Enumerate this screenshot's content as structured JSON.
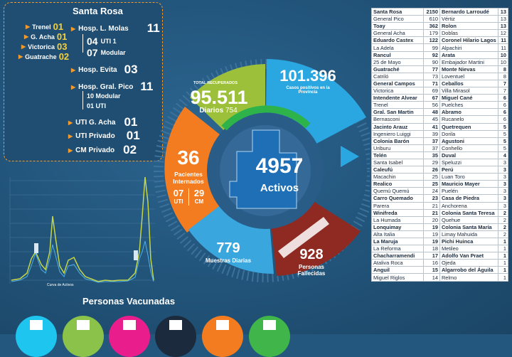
{
  "santa_rosa": {
    "title": "Santa Rosa",
    "locations": [
      {
        "name": "Trenel",
        "value": "01"
      },
      {
        "name": "G. Acha",
        "value": "01"
      },
      {
        "name": "Victorica",
        "value": "03"
      },
      {
        "name": "Guatrache",
        "value": "02"
      }
    ],
    "hosp_molas": {
      "label": "Hosp. L. Molas",
      "value": "11",
      "uti": "04",
      "uti_label": "UTI 1",
      "modular": "07",
      "modular_label": "Modular"
    },
    "hosp_evita": {
      "label": "Hosp. Evita",
      "value": "03"
    },
    "hosp_pico": {
      "label": "Hosp. Gral. Pico",
      "value": "11",
      "modular_line": "10 Modular",
      "uti_line": "01 UTI"
    },
    "uti_acha": {
      "label": "UTI G. Acha",
      "value": "01"
    },
    "uti_privado": {
      "label": "UTI Privado",
      "value": "01"
    },
    "cm_privado": {
      "label": "CM Privado",
      "value": "02"
    }
  },
  "chart": {
    "caption": "Curva de Activos"
  },
  "vaccinated": {
    "title": "Personas Vacunadas",
    "colors": [
      "#1ec5ee",
      "#8bc34a",
      "#e91e8c",
      "#1b2a3c",
      "#f47c20",
      "#3fb54a"
    ]
  },
  "summary": {
    "recuperados_title": "TOTAL RECUPERADOS",
    "recuperados": "95.511",
    "diarios_label": "Diarios",
    "diarios": "754",
    "casos": "101.396",
    "casos_label": "Casos positivos en la Provincia",
    "internados": "36",
    "internados_label": "Pacientes Internados",
    "uti": "07",
    "uti_label": "UTI",
    "cm": "29",
    "cm_label": "CM",
    "activos": "4957",
    "activos_label": "Activos",
    "muestras": "779",
    "muestras_label": "Muestras Diarias",
    "fallecidas": "928",
    "fallecidas_label": "Personas Fallecidas"
  },
  "colors": {
    "green": "#9dc03b",
    "blue": "#2aa6e0",
    "orange": "#f47c20",
    "dark_red": "#8e2a22",
    "light_blue": "#39a6dd",
    "navy": "#2f5c8a"
  },
  "table": [
    [
      "Santa Rosa",
      "2150",
      "Bernardo Larroudé",
      "13",
      1,
      1
    ],
    [
      "General Pico",
      "610",
      "Vértiz",
      "13",
      0,
      0
    ],
    [
      "Toay",
      "362",
      "Rolon",
      "13",
      1,
      1
    ],
    [
      "General Acha",
      "179",
      "Doblas",
      "12",
      0,
      0
    ],
    [
      "Eduardo Castex",
      "122",
      "Coronel Hilario Lagos",
      "11",
      1,
      1
    ],
    [
      "La Adela",
      "99",
      "Alpachiri",
      "11",
      0,
      0
    ],
    [
      "Rancul",
      "92",
      "Arata",
      "10",
      1,
      1
    ],
    [
      "25 de Mayo",
      "90",
      "Embajador Martini",
      "10",
      0,
      0
    ],
    [
      "Guatraché",
      "77",
      "Monte Nievas",
      "8",
      1,
      1
    ],
    [
      "Catriló",
      "73",
      "Loventuel",
      "8",
      0,
      0
    ],
    [
      "General Campos",
      "71",
      "Ceballos",
      "7",
      1,
      1
    ],
    [
      "Victorica",
      "69",
      "Villa Mirasol",
      "7",
      0,
      0
    ],
    [
      "Intendente Alvear",
      "67",
      "Miguel Cané",
      "6",
      1,
      1
    ],
    [
      "Trenel",
      "56",
      "Puelches",
      "6",
      0,
      0
    ],
    [
      "Gral. San Martin",
      "48",
      "Abramo",
      "6",
      1,
      1
    ],
    [
      "Bernasconi",
      "45",
      "Rucanelo",
      "6",
      0,
      0
    ],
    [
      "Jacinto Arauz",
      "41",
      "Quetrequen",
      "5",
      1,
      1
    ],
    [
      "Ingeniero Luiggi",
      "39",
      "Dorila",
      "5",
      0,
      0
    ],
    [
      "Colonia Barón",
      "37",
      "Agustoni",
      "5",
      1,
      1
    ],
    [
      "Uriburu",
      "37",
      "Conhello",
      "5",
      0,
      0
    ],
    [
      "Telén",
      "35",
      "Duval",
      "4",
      1,
      1
    ],
    [
      "Santa Isabel",
      "29",
      "Speluzzi",
      "3",
      0,
      0
    ],
    [
      "Caleufú",
      "26",
      "Perú",
      "3",
      1,
      1
    ],
    [
      "Macachin",
      "25",
      "Luan Toro",
      "3",
      0,
      0
    ],
    [
      "Realico",
      "25",
      "Mauricio Mayer",
      "3",
      1,
      1
    ],
    [
      "Quemú Quemú",
      "24",
      "Puelén",
      "3",
      0,
      0
    ],
    [
      "Carro Quemado",
      "23",
      "Casa de Piedra",
      "3",
      1,
      1
    ],
    [
      "Parera",
      "21",
      "Anchorena",
      "3",
      0,
      0
    ],
    [
      "Winifreda",
      "21",
      "Colonia Santa Teresa",
      "2",
      1,
      1
    ],
    [
      "La Humada",
      "20",
      "Quehue",
      "2",
      0,
      0
    ],
    [
      "Lonquimay",
      "19",
      "Colonia Santa María",
      "2",
      1,
      1
    ],
    [
      "Alta Italia",
      "19",
      "Limay Mahuida",
      "2",
      0,
      0
    ],
    [
      "La Maruja",
      "19",
      "Pichi Huinca",
      "1",
      1,
      1
    ],
    [
      "La Reforma",
      "18",
      "Metileo",
      "1",
      0,
      0
    ],
    [
      "Chacharramendi",
      "17",
      "Adolfo Van Praet",
      "1",
      1,
      1
    ],
    [
      "Ataliva Roca",
      "16",
      "Ojeda",
      "1",
      0,
      0
    ],
    [
      "Anguil",
      "15",
      "Algarrobo del Águila",
      "1",
      1,
      1
    ],
    [
      "Miguel Riglos",
      "14",
      "Relmo",
      "1",
      0,
      0
    ]
  ]
}
